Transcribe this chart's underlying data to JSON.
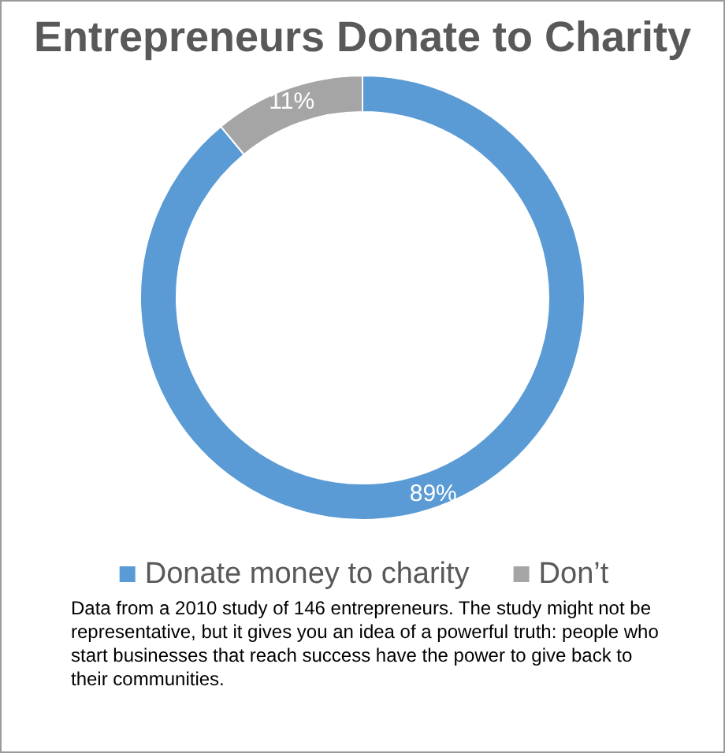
{
  "chart_data": {
    "type": "donut",
    "title": "Entrepreneurs Donate to Charity",
    "categories": [
      "Donate money to charity",
      "Don’t"
    ],
    "values": [
      89,
      11
    ],
    "value_labels": [
      "89%",
      "11%"
    ],
    "colors": [
      "#5b9bd5",
      "#a5a5a5"
    ],
    "legend": "bottom",
    "annotations": [
      "Data from a 2010 study of 146 entrepreneurs. The study might not be representative, but it gives you an idea of a powerful truth: people who start businesses that reach success have the power to give back to their communities."
    ]
  }
}
